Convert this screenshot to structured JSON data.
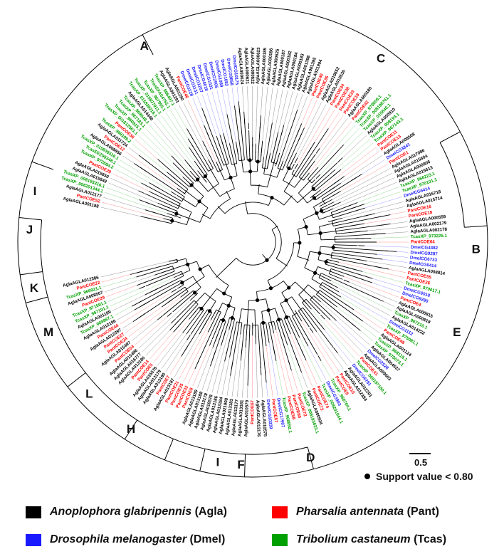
{
  "figure": {
    "clades": [
      "A",
      "B",
      "C",
      "D",
      "E",
      "F",
      "H",
      "I",
      "J",
      "K",
      "L",
      "M",
      "I"
    ],
    "scale_label": "0.5",
    "support_label": "Support value < 0.80",
    "legend": [
      {
        "species": "Anoplophora glabripennis",
        "abbr": "(Agla)",
        "color": "#000000"
      },
      {
        "species": "Pharsalia antennata",
        "abbr": "(Pant)",
        "color": "#ff0000"
      },
      {
        "species": "Drosophila melanogaster",
        "abbr": "(Dmel)",
        "color": "#1a1aff"
      },
      {
        "species": "Tribolium castaneum",
        "abbr": "(Tcas)",
        "color": "#00a000"
      }
    ],
    "leaves": [
      {
        "t": "AglaAGLA001188",
        "c": "#000000"
      },
      {
        "t": "PantCOE52",
        "c": "#ff0000"
      },
      {
        "t": "AglaAGLA012177",
        "c": "#000000"
      },
      {
        "t": "TcasXP_008201344.1",
        "c": "#00a000"
      },
      {
        "t": "TcasXP_008193316.1",
        "c": "#00a000"
      },
      {
        "t": "AglaAGLA015649",
        "c": "#000000"
      },
      {
        "t": "AglaAGLA015650",
        "c": "#000000"
      },
      {
        "t": "PantCOE28",
        "c": "#ff0000"
      },
      {
        "t": "TcasXP_972684.2",
        "c": "#00a000"
      },
      {
        "t": "TcasEEZ99348.1",
        "c": "#00a000"
      },
      {
        "t": "TcasXP_015836516.1",
        "c": "#00a000"
      },
      {
        "t": "AglaAGLA008856",
        "c": "#000000"
      },
      {
        "t": "PantCOE12",
        "c": "#ff0000"
      },
      {
        "t": "AglaAGLA011724",
        "c": "#000000"
      },
      {
        "t": "TcasXP_968199.2",
        "c": "#00a000"
      },
      {
        "t": "PantCOE36",
        "c": "#ff0000"
      },
      {
        "t": "TcasXP_001812561.1",
        "c": "#00a000"
      },
      {
        "t": "TcasXP_966915.1",
        "c": "#00a000"
      },
      {
        "t": "TcasXP_967183.1",
        "c": "#00a000"
      },
      {
        "t": "TcasXP_968048.1",
        "c": "#00a000"
      },
      {
        "t": "AglaAGLA014448",
        "c": "#000000"
      },
      {
        "t": "TcasXP_015839218.1",
        "c": "#00a000"
      },
      {
        "t": "TcasXP_015837911.1",
        "c": "#00a000"
      },
      {
        "t": "TcasXP_967955.1",
        "c": "#00a000"
      },
      {
        "t": "TcasEFA04755.1",
        "c": "#00a000"
      },
      {
        "t": "TcasXP_966497.1",
        "c": "#00a000"
      },
      {
        "t": "AglaAGLA001291",
        "c": "#000000"
      },
      {
        "t": "AglaAGLA001290",
        "c": "#000000"
      },
      {
        "t": "PantCOE46",
        "c": "#ff0000"
      },
      {
        "t": "DmelCG1128",
        "c": "#1a1aff"
      },
      {
        "t": "DmelCG1131",
        "c": "#1a1aff"
      },
      {
        "t": "DmelCG1257",
        "c": "#1a1aff"
      },
      {
        "t": "DmelCG4018",
        "c": "#1a1aff"
      },
      {
        "t": "DmelCG1031",
        "c": "#1a1aff"
      },
      {
        "t": "DmelCG2505",
        "c": "#1a1aff"
      },
      {
        "t": "DmelCG1089",
        "c": "#1a1aff"
      },
      {
        "t": "DmelCG1082",
        "c": "#1a1aff"
      },
      {
        "t": "DmelCG9858",
        "c": "#1a1aff"
      },
      {
        "t": "DmelCG10175",
        "c": "#1a1aff"
      },
      {
        "t": "AglaAGLA000624",
        "c": "#000000"
      },
      {
        "t": "AglaAGLA000621",
        "c": "#000000"
      },
      {
        "t": "AglaAGLA000622",
        "c": "#000000"
      },
      {
        "t": "AglaAGLA000623",
        "c": "#000000"
      },
      {
        "t": "AglaAGLA000185",
        "c": "#000000"
      },
      {
        "t": "AglaAGLA000186",
        "c": "#000000"
      },
      {
        "t": "AglaAGLA000625",
        "c": "#000000"
      },
      {
        "t": "AglaAGLA000187",
        "c": "#000000"
      },
      {
        "t": "AglaAGLA000182",
        "c": "#000000"
      },
      {
        "t": "AglaAGLA000184",
        "c": "#000000"
      },
      {
        "t": "AglaAGLA000183",
        "c": "#000000"
      },
      {
        "t": "AglaAGLA001398",
        "c": "#000000"
      },
      {
        "t": "AglaAGLA001395",
        "c": "#000000"
      },
      {
        "t": "AglaAGLA021994",
        "c": "#000000"
      },
      {
        "t": "PantCOE40",
        "c": "#ff0000"
      },
      {
        "t": "PantCOE35",
        "c": "#ff0000"
      },
      {
        "t": "AglaAGLA019652",
        "c": "#000000"
      },
      {
        "t": "AglaAGLA010530",
        "c": "#000000"
      },
      {
        "t": "PantCOE34",
        "c": "#ff0000"
      },
      {
        "t": "PantCOE38",
        "c": "#ff0000"
      },
      {
        "t": "PantCOE33",
        "c": "#ff0000"
      },
      {
        "t": "PantCOE19",
        "c": "#ff0000"
      },
      {
        "t": "AglaAGLA000180",
        "c": "#000000"
      },
      {
        "t": "PantCOE42",
        "c": "#ff0000"
      },
      {
        "t": "TcasXP_970008.1",
        "c": "#00a000"
      },
      {
        "t": "TcasXP_008198761.1",
        "c": "#00a000"
      },
      {
        "t": "TcasXP_015840.1",
        "c": "#00a000"
      },
      {
        "t": "AglaAGLA000910",
        "c": "#000000"
      },
      {
        "t": "TcasXP_008193.1",
        "c": "#00a000"
      },
      {
        "t": "TcasXP_967143.1",
        "c": "#00a000"
      },
      {
        "t": "PantCOE11",
        "c": "#ff0000"
      },
      {
        "t": "PantCOE13",
        "c": "#ff0000"
      },
      {
        "t": "AglaAGLA008508",
        "c": "#000000"
      },
      {
        "t": "DmelCG3841",
        "c": "#1a1aff"
      },
      {
        "t": "PantCOE1",
        "c": "#ff0000"
      },
      {
        "t": "AglaAGLA017086",
        "c": "#000000"
      },
      {
        "t": "AglaAGLA015604",
        "c": "#000000"
      },
      {
        "t": "AglaAGLA000906",
        "c": "#000000"
      },
      {
        "t": "AglaAGLA015613",
        "c": "#000000"
      },
      {
        "t": "TcasXP_966223.1",
        "c": "#00a000"
      },
      {
        "t": "TcasXP_970101.1",
        "c": "#00a000"
      },
      {
        "t": "DmelCG6414",
        "c": "#1a1aff"
      },
      {
        "t": "AglaAGLA016718",
        "c": "#000000"
      },
      {
        "t": "AglaAGLA015714",
        "c": "#000000"
      },
      {
        "t": "PantCOE16",
        "c": "#ff0000"
      },
      {
        "t": "PantCOE18",
        "c": "#ff0000"
      },
      {
        "t": "AglaAGLA000559",
        "c": "#000000"
      },
      {
        "t": "AglaAGLA002179",
        "c": "#000000"
      },
      {
        "t": "AglaAGLA002178",
        "c": "#000000"
      },
      {
        "t": "TcasXP_973225.1",
        "c": "#00a000"
      },
      {
        "t": "PantCOE64",
        "c": "#ff0000"
      },
      {
        "t": "DmelCG4382",
        "c": "#1a1aff"
      },
      {
        "t": "DmelCG9287",
        "c": "#1a1aff"
      },
      {
        "t": "DmelCG6733",
        "c": "#1a1aff"
      },
      {
        "t": "DmelCG6414",
        "c": "#1a1aff"
      },
      {
        "t": "AglaAGLA008814",
        "c": "#000000"
      },
      {
        "t": "PantCOE55",
        "c": "#ff0000"
      },
      {
        "t": "PantCOE26",
        "c": "#ff0000"
      },
      {
        "t": "TcasXP_970017.1",
        "c": "#00a000"
      },
      {
        "t": "DmelCG6018",
        "c": "#1a1aff"
      },
      {
        "t": "DmelCG9280",
        "c": "#1a1aff"
      },
      {
        "t": "PantCOE4",
        "c": "#ff0000"
      },
      {
        "t": "AglaAGLA000815",
        "c": "#000000"
      },
      {
        "t": "AglaAGLA000818",
        "c": "#000000"
      },
      {
        "t": "TcasXP_967210.1",
        "c": "#00a000"
      },
      {
        "t": "AglaAGLA014222",
        "c": "#000000"
      },
      {
        "t": "DmelCG1112",
        "c": "#1a1aff"
      },
      {
        "t": "TcasXP_975081.1",
        "c": "#00a000"
      },
      {
        "t": "PantCOE48",
        "c": "#ff0000"
      },
      {
        "t": "AglaAGLA001124",
        "c": "#000000"
      },
      {
        "t": "TcasXP_968118.1",
        "c": "#00a000"
      },
      {
        "t": "TcasXP_970073.1",
        "c": "#00a000"
      },
      {
        "t": "AglaAGLA004537",
        "c": "#000000"
      },
      {
        "t": "DmelCG2528",
        "c": "#1a1aff"
      },
      {
        "t": "AglaAGLA009603",
        "c": "#000000"
      },
      {
        "t": "PantCOE41",
        "c": "#ff0000"
      },
      {
        "t": "TcasXP_008197180.1",
        "c": "#00a000"
      },
      {
        "t": "DmelCG6781",
        "c": "#1a1aff"
      },
      {
        "t": "AglaAGLA012201",
        "c": "#000000"
      },
      {
        "t": "AglaAGLA012384",
        "c": "#000000"
      },
      {
        "t": "PantCOE10",
        "c": "#ff0000"
      },
      {
        "t": "PantCOE9",
        "c": "#ff0000"
      },
      {
        "t": "TcasXP_966704.1",
        "c": "#00a000"
      },
      {
        "t": "DmelCG3903",
        "c": "#1a1aff"
      },
      {
        "t": "TcasXP_008201044.1",
        "c": "#00a000"
      },
      {
        "t": "PantCOE74",
        "c": "#ff0000"
      },
      {
        "t": "PantCOE73",
        "c": "#ff0000"
      },
      {
        "t": "AglaAGLA000934",
        "c": "#000000"
      },
      {
        "t": "TcasXP_008193633.1",
        "c": "#00a000"
      },
      {
        "t": "PantCOE72",
        "c": "#ff0000"
      },
      {
        "t": "PantCOE60",
        "c": "#ff0000"
      },
      {
        "t": "PantCOE58",
        "c": "#ff0000"
      },
      {
        "t": "TcasXP_968892.1",
        "c": "#00a000"
      },
      {
        "t": "DmelCG17907",
        "c": "#1a1aff"
      },
      {
        "t": "PantCOE57",
        "c": "#ff0000"
      },
      {
        "t": "DmelCG10339",
        "c": "#1a1aff"
      },
      {
        "t": "AglaAGLA010575",
        "c": "#000000"
      },
      {
        "t": "AglaAGLA013176",
        "c": "#000000"
      },
      {
        "t": "PantCOE67",
        "c": "#ff0000"
      },
      {
        "t": "AglaAGLA010579",
        "c": "#000000"
      },
      {
        "t": "AglaAGLA013181",
        "c": "#000000"
      },
      {
        "t": "AglaAGLA013177",
        "c": "#000000"
      },
      {
        "t": "AglaAGLA013183",
        "c": "#000000"
      },
      {
        "t": "AglaAGLA021908",
        "c": "#000000"
      },
      {
        "t": "AglaAGLA013184",
        "c": "#000000"
      },
      {
        "t": "AglaAGLA013186",
        "c": "#000000"
      },
      {
        "t": "AglaAGLA010578",
        "c": "#000000"
      },
      {
        "t": "AglaAGLA013178",
        "c": "#000000"
      },
      {
        "t": "AglaAGLA013188",
        "c": "#000000"
      },
      {
        "t": "AglaAGLA013189",
        "c": "#000000"
      },
      {
        "t": "PantCOE8",
        "c": "#ff0000"
      },
      {
        "t": "PantCOE32",
        "c": "#ff0000"
      },
      {
        "t": "PantCOE25",
        "c": "#ff0000"
      },
      {
        "t": "PantCOE21",
        "c": "#ff0000"
      },
      {
        "t": "AglaAGLA013187",
        "c": "#000000"
      },
      {
        "t": "PantCOE7",
        "c": "#ff0000"
      },
      {
        "t": "AglaAGLA013190",
        "c": "#000000"
      },
      {
        "t": "AglaAGLA013179",
        "c": "#000000"
      },
      {
        "t": "AglaAGLA015576",
        "c": "#000000"
      },
      {
        "t": "PantCOE5",
        "c": "#ff0000"
      },
      {
        "t": "PantCOE14",
        "c": "#ff0000"
      },
      {
        "t": "AglaAGLA013180",
        "c": "#000000"
      },
      {
        "t": "AglaAGLA016777",
        "c": "#000000"
      },
      {
        "t": "AglaAGLA015496",
        "c": "#000000"
      },
      {
        "t": "PantCOE54",
        "c": "#ff0000"
      },
      {
        "t": "AglaAGLA015497",
        "c": "#000000"
      },
      {
        "t": "PantCOE24",
        "c": "#ff0000"
      },
      {
        "t": "PantCOE27",
        "c": "#ff0000"
      },
      {
        "t": "AglaAGLA012397",
        "c": "#000000"
      },
      {
        "t": "PantCOE44",
        "c": "#ff0000"
      },
      {
        "t": "AglaAGLA012196",
        "c": "#000000"
      },
      {
        "t": "TcasXP_969867.1",
        "c": "#00a000"
      },
      {
        "t": "AglaAGLA001189",
        "c": "#000000"
      },
      {
        "t": "TcasXP_967191.1",
        "c": "#00a000"
      },
      {
        "t": "TcasXP_971591.1",
        "c": "#00a000"
      },
      {
        "t": "PantCOE29",
        "c": "#ff0000"
      },
      {
        "t": "AglaAGLA008507",
        "c": "#000000"
      },
      {
        "t": "TcasXP_966921.1",
        "c": "#00a000"
      },
      {
        "t": "PantCOE22",
        "c": "#ff0000"
      },
      {
        "t": "AglaAGLA012386",
        "c": "#000000"
      }
    ]
  }
}
